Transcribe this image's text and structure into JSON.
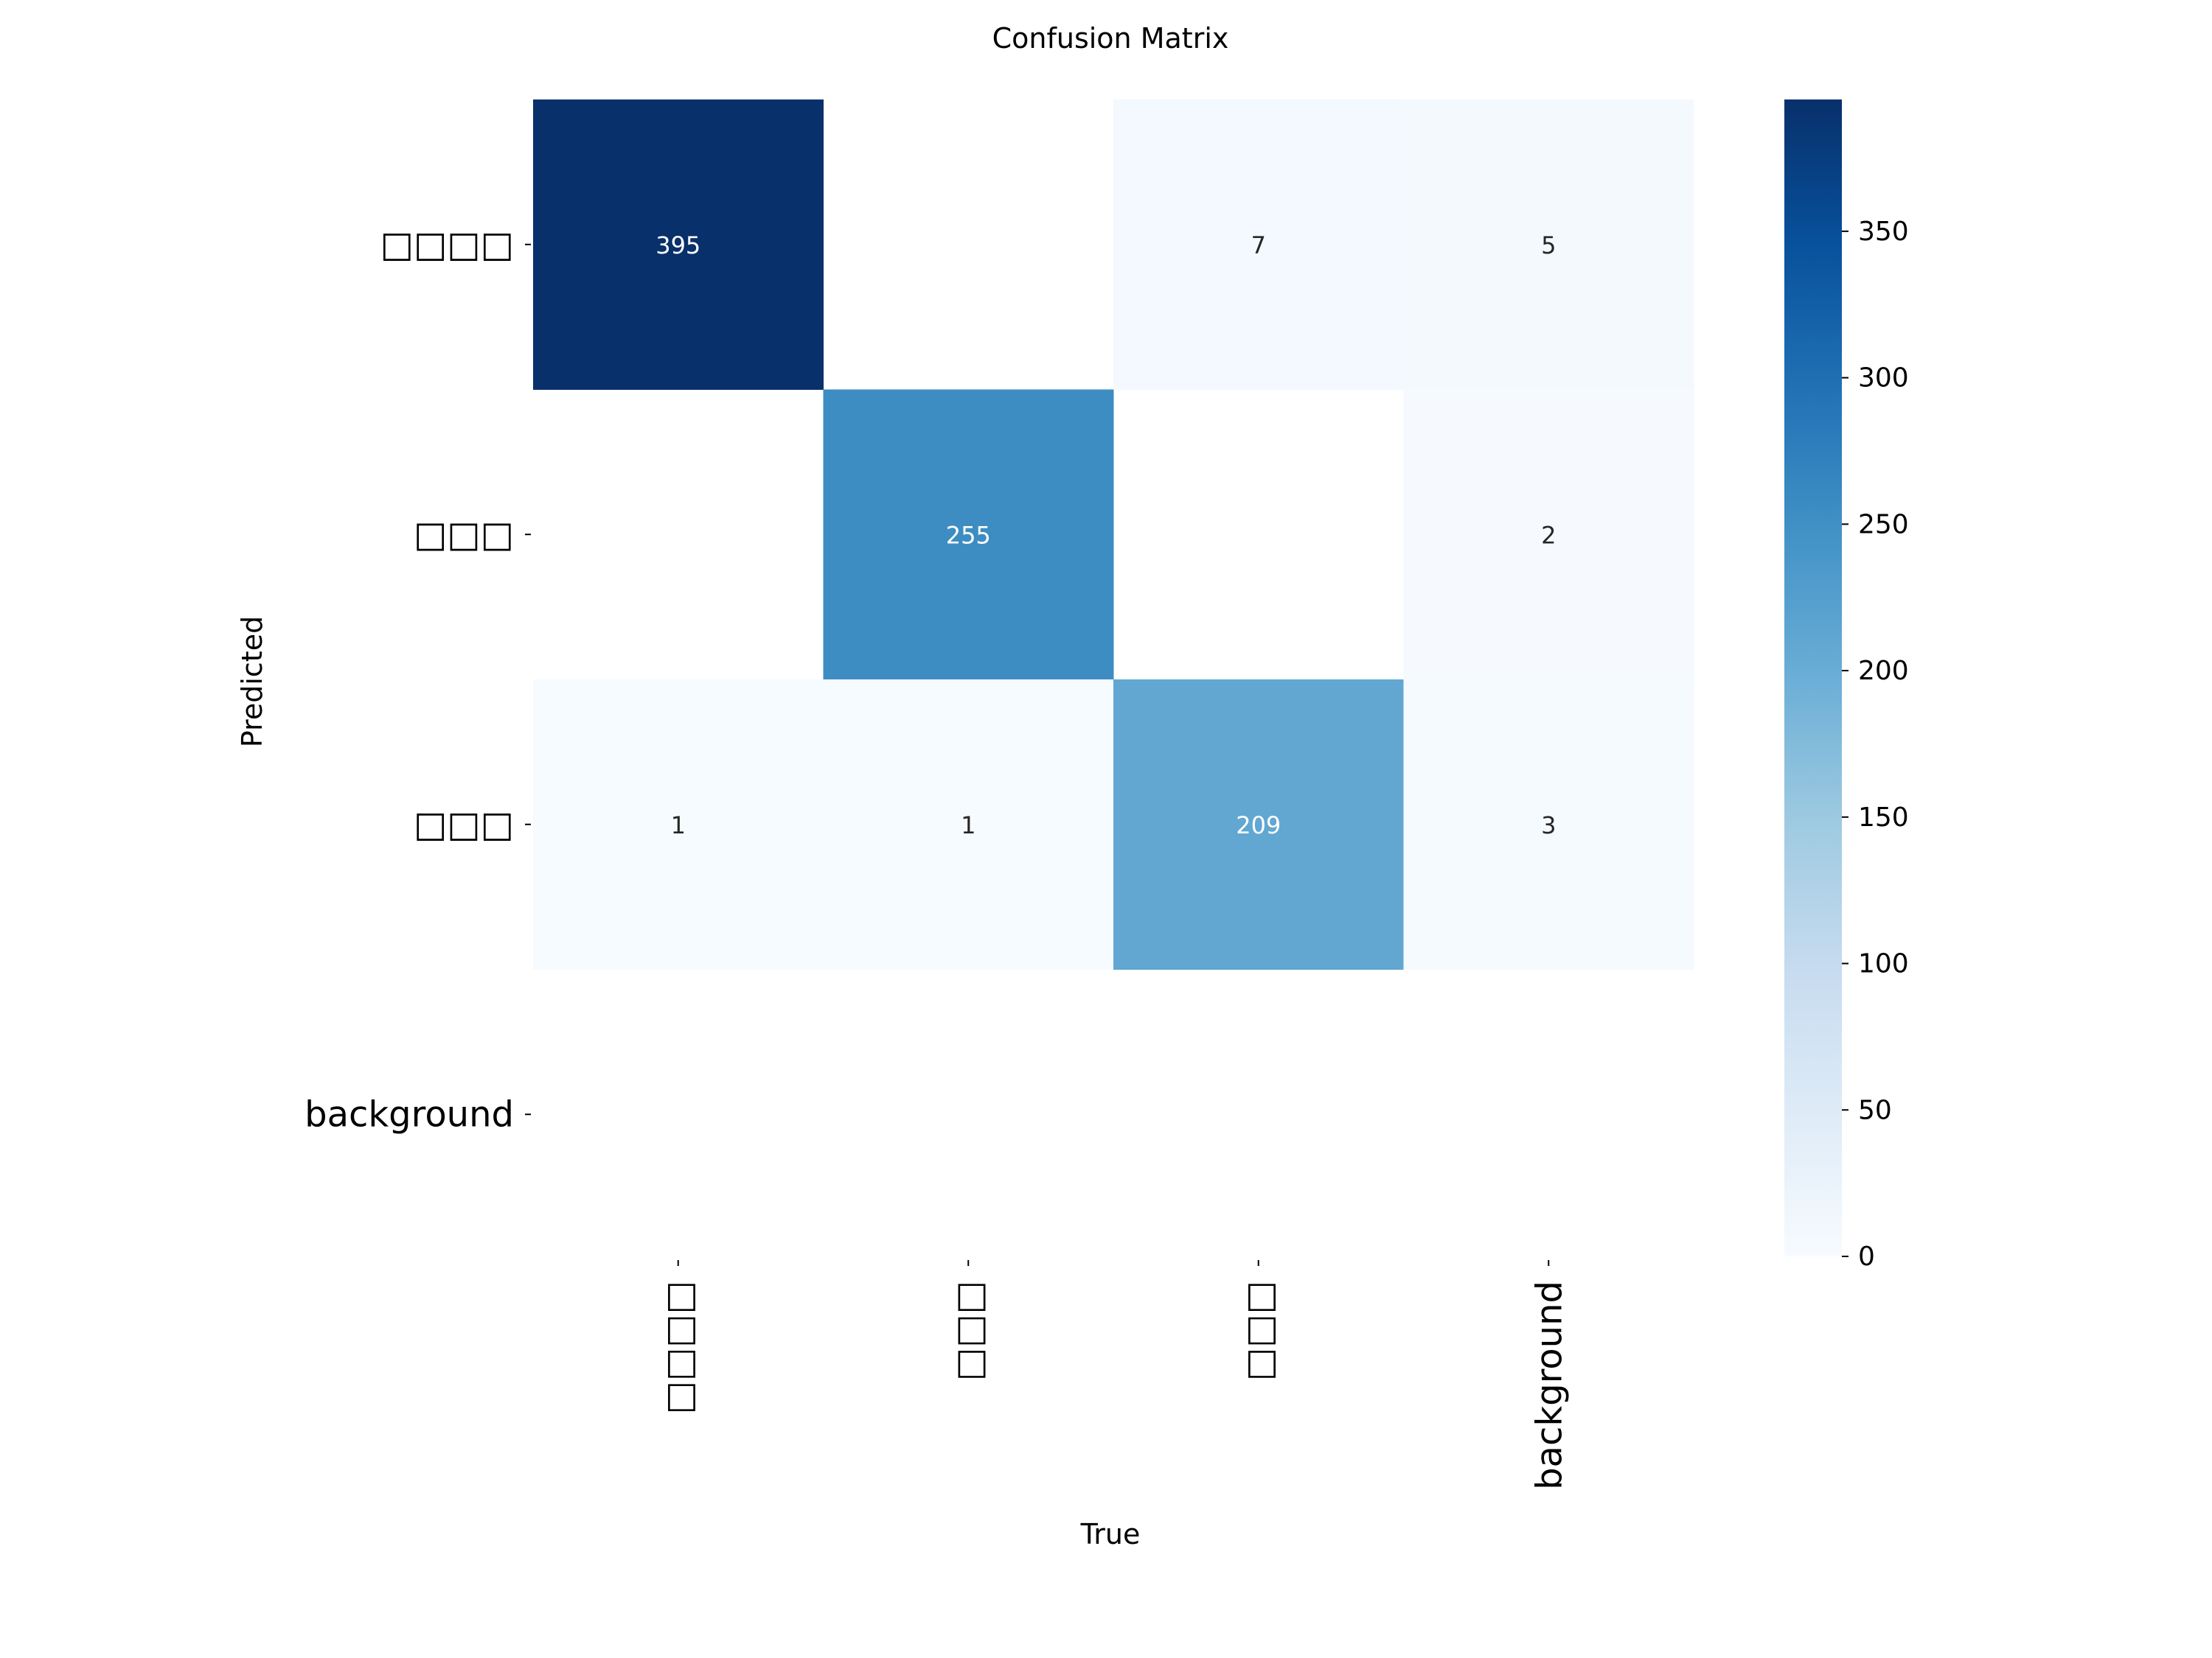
{
  "chart_data": {
    "type": "heatmap",
    "title": "Confusion Matrix",
    "xlabel": "True",
    "ylabel": "Predicted",
    "x_categories": [
      "□□□□",
      "□□□",
      "□□□",
      "background"
    ],
    "y_categories": [
      "□□□□",
      "□□□",
      "□□□",
      "background"
    ],
    "values": [
      [
        395,
        null,
        7,
        5
      ],
      [
        null,
        255,
        null,
        2
      ],
      [
        1,
        1,
        209,
        3
      ],
      [
        null,
        null,
        null,
        null
      ]
    ],
    "colorbar": {
      "range": [
        0,
        395
      ],
      "ticks": [
        0,
        50,
        100,
        150,
        200,
        250,
        300,
        350
      ],
      "colormap": "Blues"
    },
    "colors": {
      "low": "#f7fbff",
      "high": "#08306b",
      "annotation_dark": "#262626",
      "annotation_light": "#ffffff"
    }
  }
}
